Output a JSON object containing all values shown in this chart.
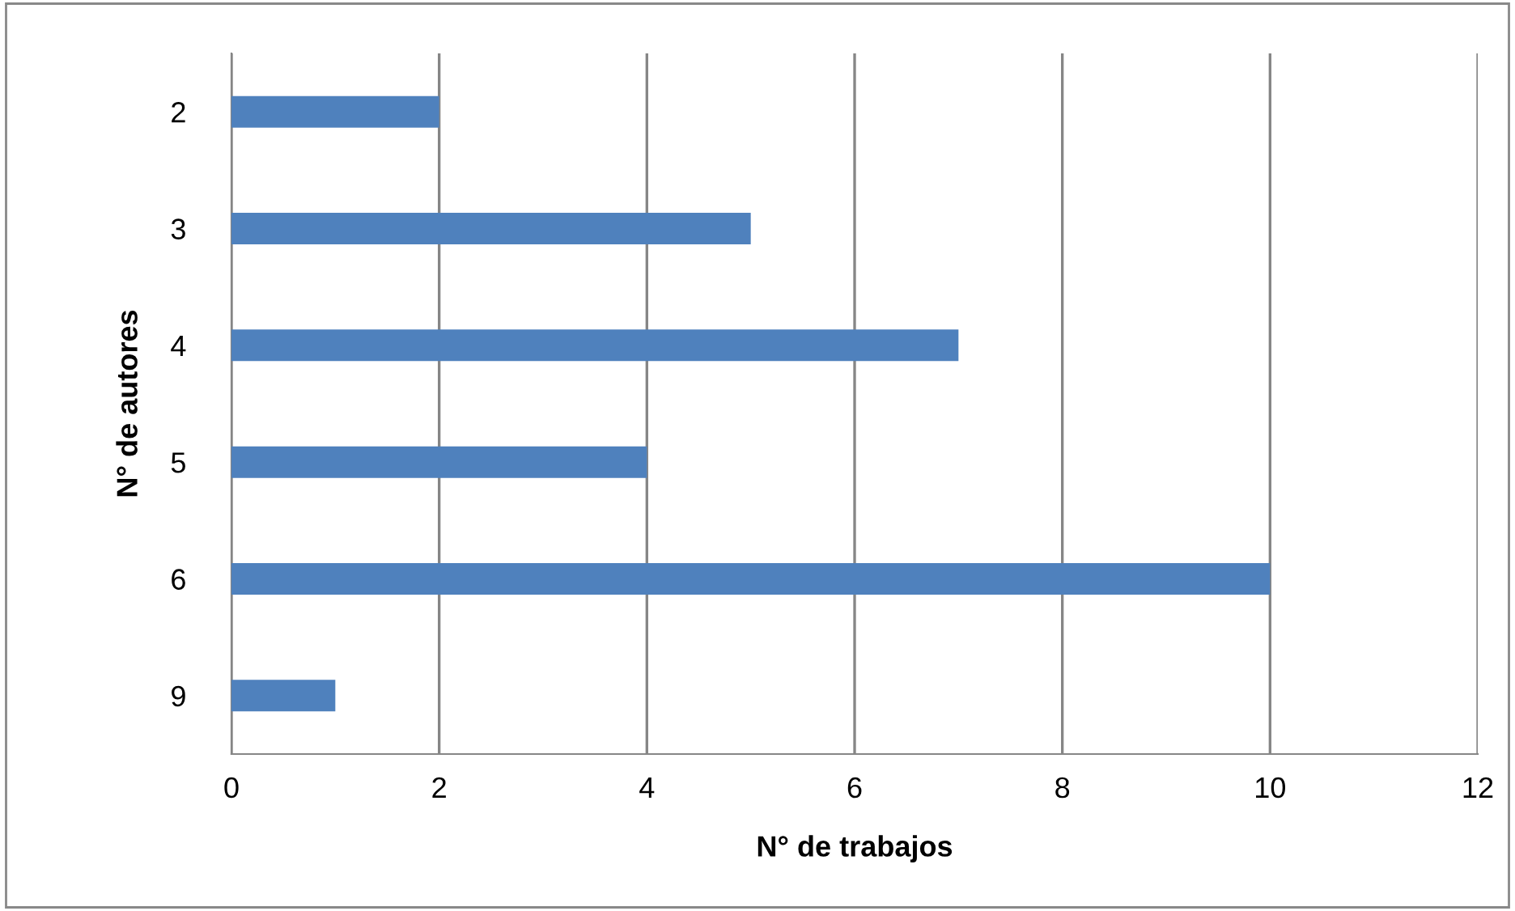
{
  "chart_data": {
    "type": "bar",
    "orientation": "horizontal",
    "xlabel": "N° de trabajos",
    "ylabel": "N° de autores",
    "categories": [
      "2",
      "3",
      "4",
      "5",
      "6",
      "9"
    ],
    "values": [
      2,
      5,
      7,
      4,
      10,
      1
    ],
    "color": "#4f81bd",
    "xlim": [
      0,
      12
    ],
    "xticks": [
      0,
      2,
      4,
      6,
      8,
      10,
      12
    ],
    "grid": "x",
    "legend": false
  }
}
